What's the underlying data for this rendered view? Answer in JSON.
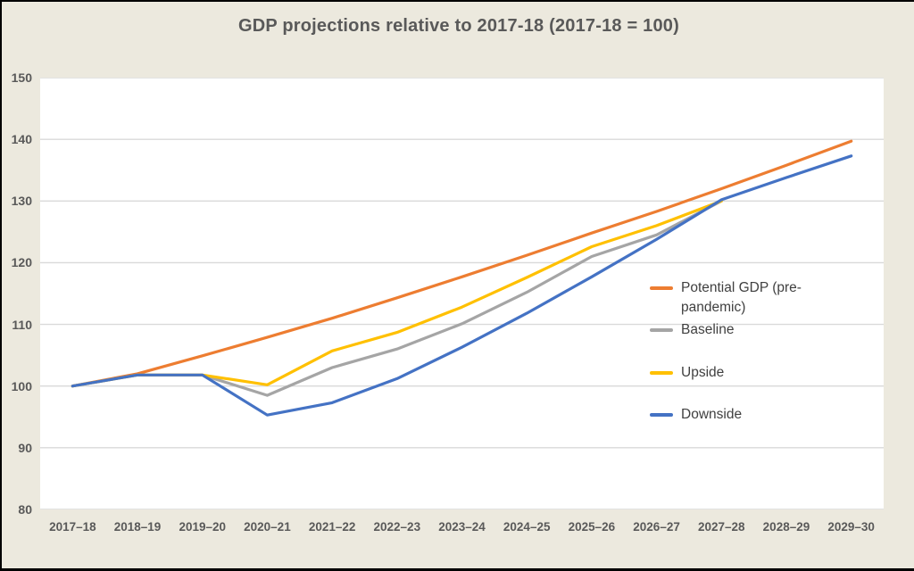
{
  "colors": {
    "background": "#ECE9DE",
    "plot_background": "#FFFFFF",
    "gridline": "#D9D9D9",
    "title_text": "#595959",
    "axis_text": "#595959",
    "legend_text": "#404040"
  },
  "chart_data": {
    "type": "line",
    "title": "GDP  projections relative to 2017-18 (2017-18 = 100)",
    "xlabel": "",
    "ylabel": "",
    "grid": true,
    "legend_position": "inside-right",
    "y_axis": {
      "min": 80,
      "max": 150,
      "step": 10,
      "ticks": [
        150,
        140,
        130,
        120,
        110,
        100,
        90,
        80
      ]
    },
    "categories": [
      "2017–18",
      "2018–19",
      "2019–20",
      "2020–21",
      "2021–22",
      "2022–23",
      "2023–24",
      "2024–25",
      "2025–26",
      "2026–27",
      "2027–28",
      "2028–29",
      "2029–30"
    ],
    "series": [
      {
        "name": "Potential GDP (pre-pandemic)",
        "color": "#ED7D31",
        "values": [
          100,
          102,
          104.9,
          107.9,
          111,
          114.3,
          117.7,
          121.2,
          124.8,
          128.3,
          132,
          135.8,
          139.7
        ]
      },
      {
        "name": "Baseline",
        "color": "#A5A5A5",
        "values": [
          100,
          101.8,
          101.8,
          98.5,
          103,
          106,
          110.1,
          115.2,
          121,
          124.5,
          130,
          null,
          null
        ]
      },
      {
        "name": "Upside",
        "color": "#FFC000",
        "values": [
          100,
          101.8,
          101.8,
          100.2,
          105.7,
          108.7,
          112.8,
          117.6,
          122.6,
          126,
          130,
          null,
          null
        ]
      },
      {
        "name": "Downside",
        "color": "#4472C4",
        "values": [
          100,
          101.8,
          101.8,
          95.3,
          97.3,
          101.2,
          106.3,
          111.8,
          117.7,
          123.8,
          130.2,
          133.8,
          137.3
        ]
      }
    ],
    "legend_item_tops": [
      10,
      57,
      105,
      152
    ]
  }
}
